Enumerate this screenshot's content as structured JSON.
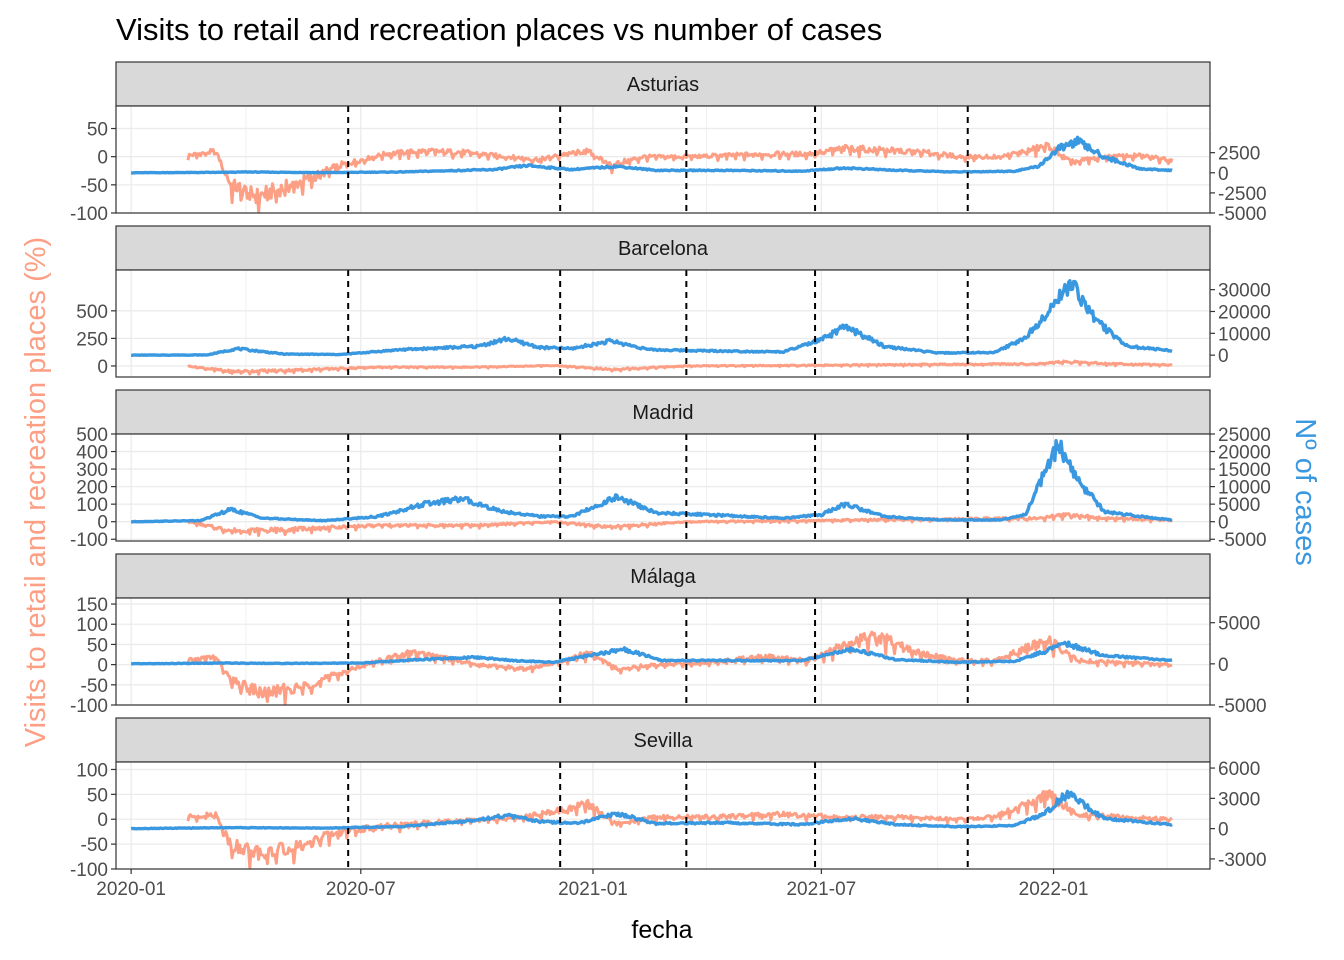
{
  "colors": {
    "retail": "#FC9F85",
    "cases": "#3A98E0",
    "strip": "#D9D9D9",
    "grid": "#EBEBEB",
    "vline": "#000000"
  },
  "chart_data": {
    "type": "line",
    "title": "Visits to retail and recreation places vs number of cases",
    "xlabel": "fecha",
    "ylabel_left": "Visits to retail and recreation places (%)",
    "ylabel_right": "Nº of cases",
    "x_range": [
      "2019-12-20",
      "2022-05-05"
    ],
    "x_ticks": [
      "2020-01",
      "2020-07",
      "2021-01",
      "2021-07",
      "2022-01"
    ],
    "vlines": [
      "2020-06-21",
      "2020-12-06",
      "2021-03-16",
      "2021-06-26",
      "2021-10-25"
    ],
    "grid": true,
    "panels": [
      {
        "name": "Asturias",
        "left_ylim": [
          -100,
          90
        ],
        "left_ticks": [
          "50",
          "0",
          "-50",
          "-100"
        ],
        "left_tick_values": [
          50,
          0,
          -50,
          -100
        ],
        "right_ylim": [
          -5000,
          8300
        ],
        "right_ticks": [
          "2500",
          "0",
          "-2500",
          "-5000"
        ],
        "right_tick_values": [
          2500,
          0,
          -2500,
          -5000
        ],
        "series": [
          {
            "name": "retail",
            "axis": "left",
            "x": [
              "2020-02-15",
              "2020-03-08",
              "2020-03-20",
              "2020-04-10",
              "2020-05-01",
              "2020-05-20",
              "2020-06-15",
              "2020-07-20",
              "2020-08-20",
              "2020-09-20",
              "2020-10-25",
              "2020-11-20",
              "2020-12-10",
              "2020-12-28",
              "2021-01-15",
              "2021-02-10",
              "2021-03-10",
              "2021-04-10",
              "2021-05-20",
              "2021-06-20",
              "2021-07-20",
              "2021-08-20",
              "2021-09-20",
              "2021-10-20",
              "2021-11-20",
              "2021-12-10",
              "2021-12-28",
              "2022-01-15",
              "2022-02-10",
              "2022-03-10",
              "2022-04-05"
            ],
            "y": [
              2,
              10,
              -50,
              -70,
              -55,
              -40,
              -15,
              5,
              10,
              8,
              0,
              -5,
              5,
              10,
              -15,
              0,
              0,
              2,
              5,
              5,
              15,
              12,
              8,
              0,
              0,
              10,
              20,
              -10,
              0,
              2,
              -5
            ]
          },
          {
            "name": "cases",
            "axis": "right",
            "x": [
              "2020-01-01",
              "2020-03-15",
              "2020-04-01",
              "2020-06-01",
              "2020-08-01",
              "2020-10-15",
              "2020-11-10",
              "2020-12-15",
              "2021-01-20",
              "2021-02-20",
              "2021-04-15",
              "2021-06-15",
              "2021-07-20",
              "2021-08-30",
              "2021-10-15",
              "2021-12-01",
              "2021-12-20",
              "2022-01-05",
              "2022-01-20",
              "2022-02-10",
              "2022-03-10",
              "2022-04-05"
            ],
            "y": [
              0,
              50,
              100,
              20,
              100,
              400,
              900,
              400,
              800,
              300,
              300,
              200,
              600,
              300,
              100,
              200,
              800,
              3000,
              3900,
              2000,
              500,
              300
            ]
          }
        ]
      },
      {
        "name": "Barcelona",
        "left_ylim": [
          -100,
          870
        ],
        "left_ticks": [
          "500",
          "250",
          "0"
        ],
        "left_tick_values": [
          500,
          250,
          0
        ],
        "right_ylim": [
          -10000,
          39000
        ],
        "right_ticks": [
          "30000",
          "20000",
          "10000",
          "0"
        ],
        "right_tick_values": [
          30000,
          20000,
          10000,
          0
        ],
        "series": [
          {
            "name": "retail",
            "axis": "left",
            "x": [
              "2020-02-15",
              "2020-03-20",
              "2020-05-01",
              "2020-07-15",
              "2020-10-01",
              "2020-12-01",
              "2021-01-15",
              "2021-03-15",
              "2021-06-01",
              "2021-08-01",
              "2021-10-15",
              "2021-12-20",
              "2022-01-10",
              "2022-02-15",
              "2022-04-05"
            ],
            "y": [
              0,
              -50,
              -40,
              -10,
              -10,
              5,
              -30,
              0,
              5,
              10,
              15,
              20,
              40,
              20,
              10
            ]
          },
          {
            "name": "cases",
            "axis": "right",
            "x": [
              "2020-01-01",
              "2020-03-01",
              "2020-03-25",
              "2020-05-01",
              "2020-06-15",
              "2020-08-01",
              "2020-10-01",
              "2020-10-25",
              "2020-11-20",
              "2020-12-15",
              "2021-01-15",
              "2021-02-15",
              "2021-04-01",
              "2021-06-01",
              "2021-07-01",
              "2021-07-20",
              "2021-08-20",
              "2021-10-01",
              "2021-11-15",
              "2021-12-10",
              "2021-12-30",
              "2022-01-15",
              "2022-02-05",
              "2022-03-01",
              "2022-04-05"
            ],
            "y": [
              0,
              100,
              3000,
              500,
              300,
              2500,
              4000,
              7500,
              3500,
              3000,
              6500,
              2500,
              2000,
              1500,
              7000,
              13000,
              4000,
              1000,
              1200,
              8000,
              22000,
              33000,
              15000,
              4000,
              2000
            ]
          }
        ]
      },
      {
        "name": "Madrid",
        "left_ylim": [
          -110,
          500
        ],
        "left_ticks": [
          "500",
          "400",
          "300",
          "200",
          "100",
          "0",
          "-100"
        ],
        "left_tick_values": [
          500,
          400,
          300,
          200,
          100,
          0,
          -100
        ],
        "right_ylim": [
          -5500,
          25000
        ],
        "right_ticks": [
          "25000",
          "20000",
          "15000",
          "10000",
          "5000",
          "0",
          "-5000"
        ],
        "right_tick_values": [
          25000,
          20000,
          15000,
          10000,
          5000,
          0,
          -5000
        ],
        "series": [
          {
            "name": "retail",
            "axis": "left",
            "x": [
              "2020-02-15",
              "2020-03-20",
              "2020-05-01",
              "2020-07-15",
              "2020-10-01",
              "2020-12-01",
              "2021-01-15",
              "2021-03-15",
              "2021-06-01",
              "2021-08-01",
              "2021-10-15",
              "2021-12-20",
              "2022-01-10",
              "2022-02-15",
              "2022-04-05"
            ],
            "y": [
              0,
              -50,
              -45,
              -20,
              -20,
              0,
              -30,
              0,
              5,
              10,
              15,
              20,
              40,
              20,
              10
            ]
          },
          {
            "name": "cases",
            "axis": "right",
            "x": [
              "2020-01-01",
              "2020-02-25",
              "2020-03-20",
              "2020-04-15",
              "2020-06-01",
              "2020-07-15",
              "2020-08-20",
              "2020-09-20",
              "2020-10-20",
              "2020-11-20",
              "2020-12-15",
              "2021-01-20",
              "2021-02-20",
              "2021-04-01",
              "2021-06-01",
              "2021-07-01",
              "2021-07-20",
              "2021-08-20",
              "2021-10-01",
              "2021-11-20",
              "2021-12-10",
              "2021-12-25",
              "2022-01-05",
              "2022-01-20",
              "2022-02-10",
              "2022-03-10",
              "2022-04-05"
            ],
            "y": [
              0,
              300,
              3500,
              1000,
              300,
              1500,
              5000,
              6500,
              3000,
              1500,
              1500,
              7000,
              2500,
              2000,
              1000,
              2000,
              5000,
              1500,
              500,
              500,
              2000,
              14000,
              22000,
              12000,
              3000,
              1500,
              500
            ]
          }
        ]
      },
      {
        "name": "Málaga",
        "left_ylim": [
          -100,
          165
        ],
        "left_ticks": [
          "150",
          "100",
          "50",
          "0",
          "-50",
          "-100"
        ],
        "left_tick_values": [
          150,
          100,
          50,
          0,
          -50,
          -100
        ],
        "right_ylim": [
          -5000,
          8000
        ],
        "right_ticks": [
          "5000",
          "0",
          "-5000"
        ],
        "right_tick_values": [
          5000,
          0,
          -5000
        ],
        "series": [
          {
            "name": "retail",
            "axis": "left",
            "x": [
              "2020-02-15",
              "2020-03-08",
              "2020-03-20",
              "2020-04-15",
              "2020-05-15",
              "2020-06-15",
              "2020-07-15",
              "2020-08-10",
              "2020-09-01",
              "2020-10-01",
              "2020-11-10",
              "2020-12-10",
              "2020-12-28",
              "2021-01-20",
              "2021-02-20",
              "2021-04-01",
              "2021-05-15",
              "2021-06-20",
              "2021-07-20",
              "2021-08-10",
              "2021-08-25",
              "2021-09-15",
              "2021-10-15",
              "2021-11-15",
              "2021-12-10",
              "2021-12-28",
              "2022-01-20",
              "2022-02-20",
              "2022-04-05"
            ],
            "y": [
              10,
              20,
              -40,
              -70,
              -55,
              -20,
              10,
              30,
              20,
              0,
              -10,
              10,
              30,
              -10,
              0,
              5,
              20,
              10,
              50,
              70,
              60,
              30,
              10,
              10,
              40,
              60,
              10,
              5,
              0
            ]
          },
          {
            "name": "cases",
            "axis": "right",
            "x": [
              "2020-01-01",
              "2020-03-20",
              "2020-05-01",
              "2020-07-01",
              "2020-08-15",
              "2020-10-01",
              "2020-10-30",
              "2020-12-01",
              "2021-01-25",
              "2021-02-25",
              "2021-04-15",
              "2021-06-15",
              "2021-07-25",
              "2021-08-30",
              "2021-10-15",
              "2021-12-01",
              "2021-12-25",
              "2022-01-10",
              "2022-02-10",
              "2022-04-05"
            ],
            "y": [
              0,
              100,
              50,
              100,
              500,
              800,
              400,
              200,
              1800,
              400,
              400,
              400,
              1800,
              500,
              200,
              300,
              1500,
              2500,
              1000,
              400
            ]
          }
        ]
      },
      {
        "name": "Sevilla",
        "left_ylim": [
          -100,
          115
        ],
        "left_ticks": [
          "100",
          "50",
          "0",
          "-50",
          "-100"
        ],
        "left_tick_values": [
          100,
          50,
          0,
          -50,
          -100
        ],
        "right_ylim": [
          -4000,
          6600
        ],
        "right_ticks": [
          "6000",
          "3000",
          "0",
          "-3000"
        ],
        "right_tick_values": [
          6000,
          3000,
          0,
          -3000
        ],
        "series": [
          {
            "name": "retail",
            "axis": "left",
            "x": [
              "2020-02-15",
              "2020-03-08",
              "2020-03-20",
              "2020-04-15",
              "2020-05-15",
              "2020-06-15",
              "2020-07-15",
              "2020-09-01",
              "2020-10-15",
              "2020-11-20",
              "2020-12-10",
              "2020-12-28",
              "2021-01-20",
              "2021-02-20",
              "2021-04-01",
              "2021-06-01",
              "2021-07-15",
              "2021-09-01",
              "2021-10-15",
              "2021-11-15",
              "2021-12-10",
              "2021-12-28",
              "2022-01-20",
              "2022-02-20",
              "2022-04-05"
            ],
            "y": [
              5,
              10,
              -50,
              -70,
              -50,
              -25,
              -15,
              -5,
              0,
              10,
              20,
              30,
              -10,
              5,
              5,
              10,
              5,
              5,
              0,
              5,
              30,
              50,
              10,
              5,
              0
            ]
          },
          {
            "name": "cases",
            "axis": "right",
            "x": [
              "2020-01-01",
              "2020-03-20",
              "2020-06-01",
              "2020-08-01",
              "2020-09-20",
              "2020-10-25",
              "2020-11-20",
              "2020-12-20",
              "2021-01-20",
              "2021-02-20",
              "2021-04-15",
              "2021-06-15",
              "2021-07-25",
              "2021-08-30",
              "2021-10-15",
              "2021-12-01",
              "2021-12-25",
              "2022-01-12",
              "2022-02-10",
              "2022-04-05"
            ],
            "y": [
              0,
              100,
              50,
              200,
              700,
              1300,
              700,
              500,
              1500,
              500,
              600,
              400,
              1000,
              400,
              200,
              300,
              1500,
              3500,
              1000,
              400
            ]
          }
        ]
      }
    ]
  }
}
